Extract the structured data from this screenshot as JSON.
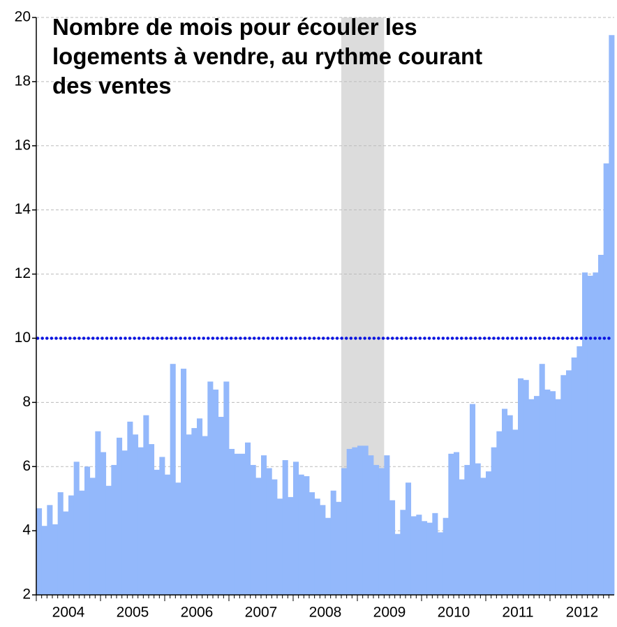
{
  "chart_data": {
    "type": "bar",
    "title": "Nombre de mois pour écouler les logements à vendre, au rythme courant des ventes",
    "categories": [
      null,
      null,
      null,
      null,
      null,
      null,
      "2004",
      null,
      null,
      null,
      null,
      null,
      null,
      null,
      null,
      null,
      null,
      null,
      "2005",
      null,
      null,
      null,
      null,
      null,
      null,
      null,
      null,
      null,
      null,
      null,
      "2006",
      null,
      null,
      null,
      null,
      null,
      null,
      null,
      null,
      null,
      null,
      null,
      "2007",
      null,
      null,
      null,
      null,
      null,
      null,
      null,
      null,
      null,
      null,
      null,
      "2008",
      null,
      null,
      null,
      null,
      null,
      null,
      null,
      null,
      null,
      null,
      null,
      "2009",
      null,
      null,
      null,
      null,
      null,
      null,
      null,
      null,
      null,
      null,
      null,
      "2010",
      null,
      null,
      null,
      null,
      null,
      null,
      null,
      null,
      null,
      null,
      null,
      "2011",
      null,
      null,
      null,
      null,
      null,
      null,
      null,
      null,
      null,
      null,
      null,
      "2012",
      null,
      null,
      null,
      null,
      null
    ],
    "values": [
      4.7,
      4.15,
      4.8,
      4.2,
      5.2,
      4.6,
      5.1,
      6.15,
      5.25,
      6.0,
      5.65,
      7.1,
      6.45,
      5.4,
      6.05,
      6.9,
      6.5,
      7.4,
      7.0,
      6.6,
      7.6,
      6.7,
      5.9,
      6.3,
      5.75,
      9.2,
      5.5,
      9.05,
      7.0,
      7.2,
      7.5,
      6.95,
      8.65,
      8.4,
      7.55,
      8.65,
      6.55,
      6.4,
      6.4,
      6.75,
      6.05,
      5.65,
      6.35,
      5.95,
      5.6,
      5.0,
      6.2,
      5.05,
      6.15,
      5.75,
      5.7,
      5.2,
      5.0,
      4.8,
      4.4,
      5.25,
      4.9,
      5.95,
      6.55,
      6.6,
      6.65,
      6.65,
      6.35,
      6.05,
      5.95,
      6.35,
      4.95,
      3.9,
      4.65,
      5.5,
      4.45,
      4.5,
      4.3,
      4.25,
      4.55,
      3.95,
      4.4,
      6.4,
      6.45,
      5.6,
      6.05,
      7.95,
      6.1,
      5.65,
      5.85,
      6.6,
      7.1,
      7.8,
      7.6,
      7.15,
      8.75,
      8.7,
      8.1,
      8.2,
      9.2,
      8.4,
      8.35,
      8.1,
      8.85,
      9.0,
      9.4,
      9.75,
      12.05,
      11.95,
      12.05,
      12.6,
      15.45,
      19.45
    ],
    "color": "#93b8fb",
    "ylim": [
      2,
      20
    ],
    "yticks": [
      2,
      4,
      6,
      8,
      10,
      12,
      14,
      16,
      18,
      20
    ],
    "grid": true,
    "reference_line": {
      "value": 10,
      "color": "#0a14e0"
    },
    "shaded_region": {
      "from": 57,
      "to": 64,
      "color": "#dcdcdc"
    }
  }
}
